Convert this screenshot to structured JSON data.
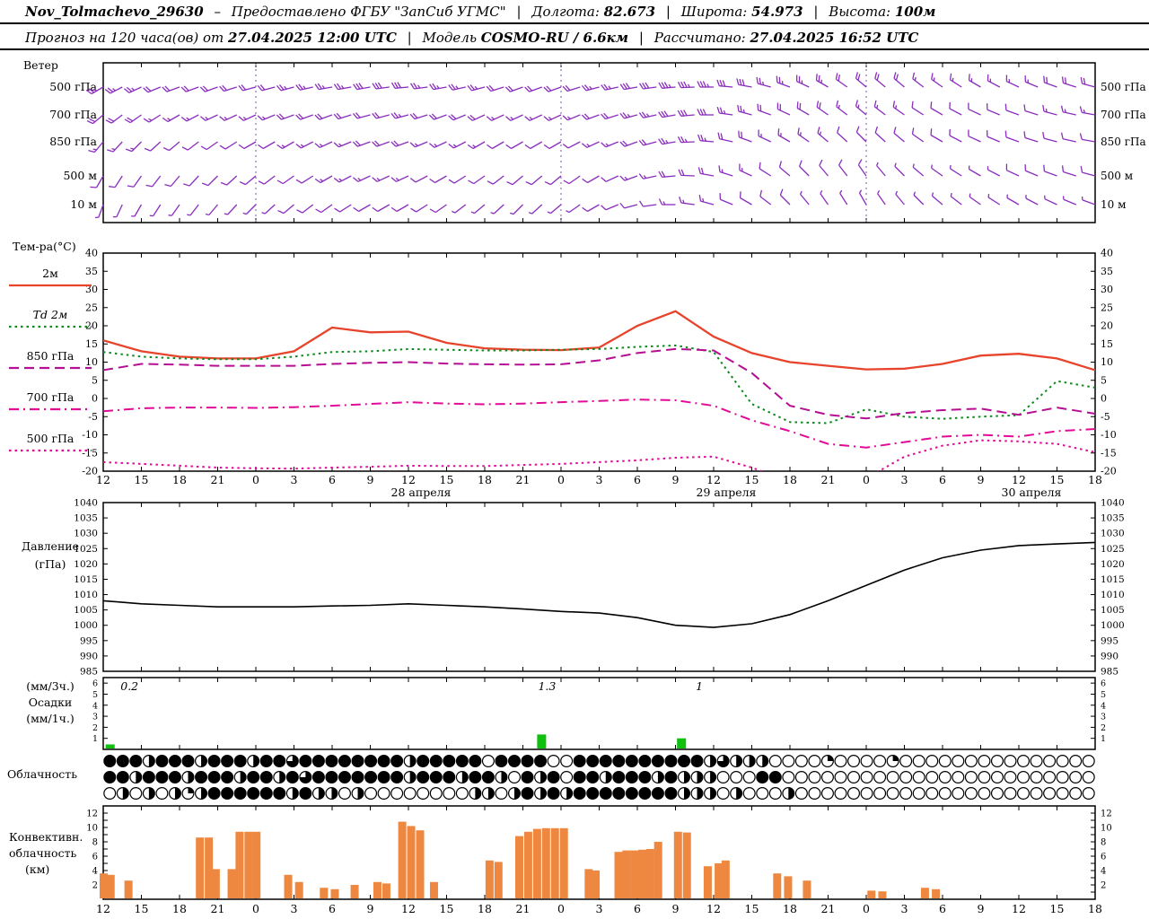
{
  "header": {
    "line1": {
      "station": "Nov_Tolmachevo_29630",
      "dash": "–",
      "provided": "Предоставлено ФГБУ \"ЗапСиб УГМС\"",
      "sep": "|",
      "lon_label": "Долгота:",
      "lon_value": "82.673",
      "lat_label": "Широта:",
      "lat_value": "54.973",
      "alt_label": "Высота:",
      "alt_value": "100м"
    },
    "line2": {
      "forecast_label": "Прогноз на 120 часа(ов) от",
      "forecast_time": "27.04.2025 12:00 UTC",
      "sep": "|",
      "model_label": "Модель",
      "model_value": "COSMO-RU / 6.6км",
      "calc_label": "Рассчитано:",
      "calc_value": "27.04.2025 16:52 UTC"
    }
  },
  "time_axis": {
    "labels": [
      "12",
      "15",
      "18",
      "21",
      "0",
      "3",
      "6",
      "9",
      "12",
      "15",
      "18",
      "21",
      "0",
      "3",
      "6",
      "9",
      "12",
      "15",
      "18",
      "21",
      "0",
      "3",
      "6",
      "9",
      "12",
      "15",
      "18"
    ],
    "dates": [
      {
        "idx": 8,
        "label": "28 апреля"
      },
      {
        "idx": 16,
        "label": "29 апреля"
      },
      {
        "idx": 24,
        "label": "30 апреля"
      }
    ]
  },
  "chart_data": [
    {
      "id": "wind",
      "type": "wind-barbs",
      "title": "Ветер",
      "color": "#8a2dbe",
      "levels": [
        {
          "label": "500 гПа",
          "dir": [
            240,
            245,
            250,
            250,
            255,
            255,
            260,
            260,
            265,
            260,
            255,
            250,
            250,
            255,
            260,
            265,
            270,
            280,
            290,
            300,
            310,
            310,
            305,
            300,
            295,
            290,
            285
          ],
          "speed_kt": [
            25,
            25,
            20,
            20,
            20,
            25,
            25,
            30,
            30,
            25,
            25,
            20,
            20,
            25,
            30,
            35,
            35,
            30,
            25,
            25,
            20,
            20,
            15,
            15,
            15,
            20,
            20
          ]
        },
        {
          "label": "700 гПа",
          "dir": [
            230,
            235,
            240,
            245,
            245,
            250,
            250,
            255,
            255,
            250,
            245,
            245,
            245,
            250,
            255,
            260,
            270,
            285,
            295,
            305,
            310,
            305,
            300,
            295,
            290,
            285,
            280
          ],
          "speed_kt": [
            20,
            20,
            15,
            15,
            15,
            20,
            20,
            20,
            25,
            20,
            20,
            15,
            15,
            20,
            25,
            30,
            30,
            25,
            20,
            20,
            15,
            15,
            10,
            10,
            10,
            15,
            15
          ]
        },
        {
          "label": "850 гПа",
          "dir": [
            220,
            225,
            230,
            235,
            240,
            240,
            245,
            250,
            250,
            245,
            240,
            240,
            240,
            245,
            250,
            260,
            275,
            290,
            300,
            310,
            315,
            310,
            300,
            295,
            290,
            285,
            280
          ],
          "speed_kt": [
            15,
            15,
            10,
            10,
            10,
            15,
            15,
            20,
            20,
            15,
            15,
            10,
            10,
            15,
            20,
            25,
            25,
            20,
            15,
            15,
            10,
            10,
            10,
            10,
            10,
            10,
            10
          ]
        },
        {
          "label": "500 м",
          "dir": [
            210,
            215,
            220,
            225,
            230,
            235,
            240,
            245,
            245,
            240,
            235,
            230,
            230,
            240,
            250,
            265,
            280,
            295,
            310,
            320,
            325,
            315,
            305,
            300,
            295,
            290,
            285
          ],
          "speed_kt": [
            10,
            10,
            10,
            10,
            10,
            10,
            15,
            15,
            15,
            10,
            10,
            10,
            10,
            10,
            15,
            20,
            20,
            15,
            10,
            10,
            10,
            5,
            5,
            5,
            10,
            10,
            10
          ]
        },
        {
          "label": "10 м",
          "dir": [
            200,
            210,
            215,
            220,
            225,
            230,
            235,
            240,
            240,
            235,
            230,
            225,
            230,
            240,
            255,
            270,
            285,
            300,
            315,
            325,
            330,
            320,
            310,
            305,
            300,
            295,
            290
          ],
          "speed_kt": [
            5,
            5,
            5,
            5,
            5,
            10,
            10,
            10,
            10,
            10,
            5,
            5,
            5,
            10,
            10,
            15,
            15,
            10,
            10,
            5,
            5,
            5,
            5,
            5,
            5,
            5,
            5
          ]
        }
      ]
    },
    {
      "id": "temperature",
      "type": "line",
      "title": "Тем-ра(°C)",
      "ylim": [
        -20,
        40
      ],
      "ytick_step": 5,
      "series": [
        {
          "name": "2м",
          "color": "#e8432b",
          "style": "solid",
          "values": [
            16,
            13,
            11.5,
            11,
            11,
            13,
            19.5,
            18.2,
            18.4,
            15.3,
            13.8,
            13.4,
            13.3,
            14,
            20,
            24,
            17,
            12.5,
            10,
            9,
            8,
            8.2,
            9.5,
            11.8,
            12.3,
            11,
            7.8
          ]
        },
        {
          "name": "Td 2м",
          "color": "#0c8a1e",
          "style": "dotted",
          "values": [
            12.8,
            11.5,
            11,
            10.8,
            10.8,
            11.5,
            12.8,
            13,
            13.6,
            13.4,
            13.2,
            13.2,
            13.4,
            13.6,
            14.2,
            14.6,
            12.8,
            -1.5,
            -6.5,
            -6.8,
            -3,
            -5,
            -5.6,
            -5,
            -4.6,
            4.8,
            3
          ]
        },
        {
          "name": "850 гПа",
          "color": "#b50e92",
          "style": "longdash",
          "values": [
            7.8,
            9.5,
            9.3,
            9,
            9,
            9,
            9.5,
            9.8,
            10,
            9.6,
            9.4,
            9.3,
            9.4,
            10.5,
            12.5,
            13.6,
            13.2,
            7,
            -2,
            -4.5,
            -5.5,
            -4,
            -3.2,
            -2.8,
            -4.5,
            -2.5,
            -4.2
          ]
        },
        {
          "name": "700 гПа",
          "color": "#e10b97",
          "style": "dashdot",
          "values": [
            -3.5,
            -2.7,
            -2.5,
            -2.5,
            -2.6,
            -2.4,
            -2,
            -1.5,
            -1,
            -1.4,
            -1.6,
            -1.4,
            -1,
            -0.7,
            -0.3,
            -0.5,
            -2,
            -6,
            -9,
            -12.5,
            -13.5,
            -12,
            -10.5,
            -10,
            -10.5,
            -9,
            -8.4
          ]
        },
        {
          "name": "500 гПа",
          "color": "#e10b97",
          "style": "dotted",
          "values": [
            -17.5,
            -18,
            -18.5,
            -19,
            -19.2,
            -19.3,
            -19,
            -18.8,
            -18.5,
            -18.6,
            -18.6,
            -18.3,
            -18,
            -17.5,
            -17,
            -16.3,
            -16,
            -19,
            -23,
            -25,
            -22,
            -16,
            -13,
            -11.5,
            -11.8,
            -12.5,
            -14.8
          ]
        }
      ]
    },
    {
      "id": "pressure",
      "type": "line",
      "title": "Давление (гПа)",
      "title_lines": [
        "Давление",
        "(гПа)"
      ],
      "ylim": [
        985,
        1040
      ],
      "ytick_step": 5,
      "series": [
        {
          "name": "Давление",
          "color": "#000000",
          "style": "solid",
          "values": [
            1008,
            1007,
            1006.5,
            1006,
            1006,
            1006,
            1006.3,
            1006.5,
            1007,
            1006.5,
            1006,
            1005.3,
            1004.5,
            1004,
            1002.5,
            1000,
            999.3,
            1000.5,
            1003.5,
            1008,
            1013,
            1018,
            1022,
            1024.5,
            1026,
            1026.5,
            1027
          ]
        }
      ]
    },
    {
      "id": "precipitation",
      "type": "bar",
      "title": "Осадки (мм)",
      "title_lines": [
        "(мм/3ч.)",
        "Осадки",
        "(мм/1ч.)"
      ],
      "ylim": [
        0,
        6.5
      ],
      "yticks": [
        1,
        2,
        3,
        4,
        5,
        6
      ],
      "color": "#0fc00f",
      "bars": [
        {
          "f": 0.002,
          "h": 0.45
        },
        {
          "f": 0.437,
          "h": 1.35
        },
        {
          "f": 0.578,
          "h": 1.0
        }
      ],
      "annotations": [
        {
          "f": 0.012,
          "text": "0.2"
        },
        {
          "f": 0.433,
          "text": "1.3"
        },
        {
          "f": 0.592,
          "text": "1"
        }
      ]
    },
    {
      "id": "cloudiness",
      "type": "cloud-cover",
      "title": "Облачность",
      "rows": [
        "4442444244424434444444424444404444004444444444232220000100001000000000000000",
        "4424442444244243444444424442442042404424442422200044000000000000000000000000",
        "0202021244444424220200000000220242424444444422202000200000000000000000000000"
      ]
    },
    {
      "id": "convective",
      "type": "bar",
      "title": "Конвективная облачность (км)",
      "title_lines": [
        "Конвективн.",
        "облачность",
        "(км)"
      ],
      "ylim": [
        0,
        13
      ],
      "yticks": [
        2,
        4,
        6,
        8,
        10,
        12
      ],
      "color": "#ee8840",
      "bars": [
        {
          "f": 0.0,
          "h": 3.6
        },
        {
          "f": 0.007,
          "h": 3.4
        },
        {
          "f": 0.025,
          "h": 2.6
        },
        {
          "f": 0.097,
          "h": 8.6
        },
        {
          "f": 0.106,
          "h": 8.6
        },
        {
          "f": 0.113,
          "h": 4.2
        },
        {
          "f": 0.129,
          "h": 4.2
        },
        {
          "f": 0.137,
          "h": 9.4
        },
        {
          "f": 0.146,
          "h": 9.4
        },
        {
          "f": 0.154,
          "h": 9.4
        },
        {
          "f": 0.186,
          "h": 3.4
        },
        {
          "f": 0.197,
          "h": 2.4
        },
        {
          "f": 0.222,
          "h": 1.6
        },
        {
          "f": 0.233,
          "h": 1.4
        },
        {
          "f": 0.253,
          "h": 2.0
        },
        {
          "f": 0.276,
          "h": 2.4
        },
        {
          "f": 0.285,
          "h": 2.2
        },
        {
          "f": 0.301,
          "h": 10.8
        },
        {
          "f": 0.31,
          "h": 10.2
        },
        {
          "f": 0.319,
          "h": 9.6
        },
        {
          "f": 0.333,
          "h": 2.4
        },
        {
          "f": 0.389,
          "h": 5.4
        },
        {
          "f": 0.398,
          "h": 5.2
        },
        {
          "f": 0.419,
          "h": 8.8
        },
        {
          "f": 0.428,
          "h": 9.4
        },
        {
          "f": 0.437,
          "h": 9.8
        },
        {
          "f": 0.446,
          "h": 9.9
        },
        {
          "f": 0.455,
          "h": 9.9
        },
        {
          "f": 0.464,
          "h": 9.9
        },
        {
          "f": 0.489,
          "h": 4.2
        },
        {
          "f": 0.496,
          "h": 4.0
        },
        {
          "f": 0.519,
          "h": 6.6
        },
        {
          "f": 0.527,
          "h": 6.8
        },
        {
          "f": 0.535,
          "h": 6.8
        },
        {
          "f": 0.543,
          "h": 6.9
        },
        {
          "f": 0.551,
          "h": 7.0
        },
        {
          "f": 0.559,
          "h": 8.0
        },
        {
          "f": 0.579,
          "h": 9.4
        },
        {
          "f": 0.588,
          "h": 9.3
        },
        {
          "f": 0.609,
          "h": 4.6
        },
        {
          "f": 0.62,
          "h": 5.0
        },
        {
          "f": 0.627,
          "h": 5.4
        },
        {
          "f": 0.679,
          "h": 3.6
        },
        {
          "f": 0.69,
          "h": 3.2
        },
        {
          "f": 0.709,
          "h": 2.6
        },
        {
          "f": 0.774,
          "h": 1.2
        },
        {
          "f": 0.785,
          "h": 1.1
        },
        {
          "f": 0.828,
          "h": 1.6
        },
        {
          "f": 0.839,
          "h": 1.4
        }
      ]
    }
  ]
}
